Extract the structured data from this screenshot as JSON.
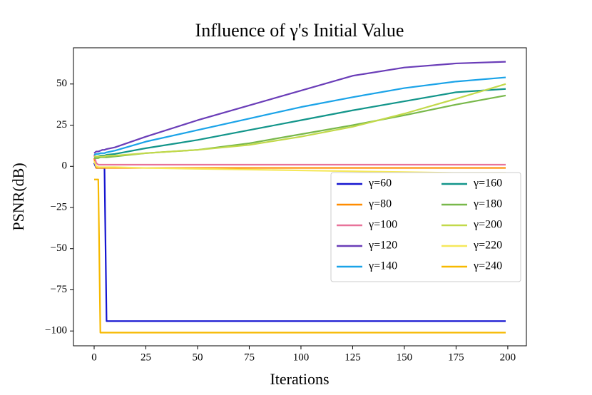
{
  "chart_data": {
    "type": "line",
    "title": "Influence of γ's Initial Value",
    "x_label": "Iterations",
    "y_label": "PSNR(dB)",
    "x": [
      0,
      1,
      2,
      3,
      4,
      5,
      6,
      10,
      25,
      50,
      75,
      100,
      125,
      150,
      175,
      199
    ],
    "xlim": [
      -10,
      209
    ],
    "ylim": [
      -109,
      72
    ],
    "xticks": [
      0,
      25,
      50,
      75,
      100,
      125,
      150,
      175,
      200
    ],
    "yticks": [
      {
        "value": -100,
        "label": "−100"
      },
      {
        "value": -75,
        "label": "−75"
      },
      {
        "value": -50,
        "label": "−50"
      },
      {
        "value": -25,
        "label": "−25"
      },
      0,
      25,
      50
    ],
    "legend": "center right",
    "grid": false,
    "series": [
      {
        "name": "γ=60",
        "color": "#1515d0",
        "values": [
          2,
          -1,
          -1,
          -1,
          -1,
          -1,
          -94,
          -94,
          -94,
          -94,
          -94,
          -94,
          -94,
          -94,
          -94,
          -94
        ]
      },
      {
        "name": "γ=80",
        "color": "#ff8c00",
        "values": [
          5,
          -1,
          -1,
          -1,
          -1,
          -1,
          -1,
          -1,
          -1,
          -1,
          -1,
          -1,
          -1,
          -1,
          -1,
          -1
        ]
      },
      {
        "name": "γ=100",
        "color": "#e8739a",
        "values": [
          7,
          2,
          1,
          1,
          1,
          1,
          1,
          1,
          1,
          1,
          1,
          1,
          1,
          1,
          1,
          1
        ]
      },
      {
        "name": "γ=120",
        "color": "#6a3db8",
        "values": [
          8,
          9,
          9,
          9.5,
          10,
          10,
          10.5,
          11.5,
          18,
          28,
          37,
          46,
          55,
          60,
          62.5,
          63.5
        ]
      },
      {
        "name": "γ=140",
        "color": "#1aa3e8",
        "values": [
          7,
          7.5,
          7.5,
          8,
          8,
          8,
          8.5,
          9.5,
          15,
          22,
          29,
          36,
          42,
          47.5,
          51.5,
          54
        ]
      },
      {
        "name": "γ=160",
        "color": "#12958a",
        "values": [
          6,
          6,
          6,
          6.5,
          6.5,
          6.5,
          7,
          7.5,
          11,
          16,
          22,
          28,
          34,
          39.5,
          45,
          47
        ]
      },
      {
        "name": "γ=180",
        "color": "#78b84a",
        "values": [
          5,
          5,
          5,
          5.5,
          5.5,
          5.5,
          5.5,
          6,
          8,
          10,
          14,
          19.5,
          25,
          31,
          37.5,
          43
        ]
      },
      {
        "name": "γ=200",
        "color": "#c2d94a",
        "values": [
          6,
          6,
          6,
          6,
          6,
          6,
          6.5,
          6.5,
          8,
          10,
          13,
          18,
          24,
          32,
          41,
          50
        ]
      },
      {
        "name": "γ=220",
        "color": "#f5e85a",
        "values": [
          3,
          0,
          -0.5,
          -0.5,
          -0.5,
          -0.5,
          -0.5,
          -0.5,
          -1,
          -1.5,
          -2,
          -2.5,
          -3,
          -3.5,
          -4,
          -4
        ]
      },
      {
        "name": "γ=240",
        "color": "#f7b900",
        "values": [
          -8,
          -8,
          -8,
          -101,
          -101,
          -101,
          -101,
          -101,
          -101,
          -101,
          -101,
          -101,
          -101,
          -101,
          -101,
          -101
        ]
      }
    ]
  }
}
